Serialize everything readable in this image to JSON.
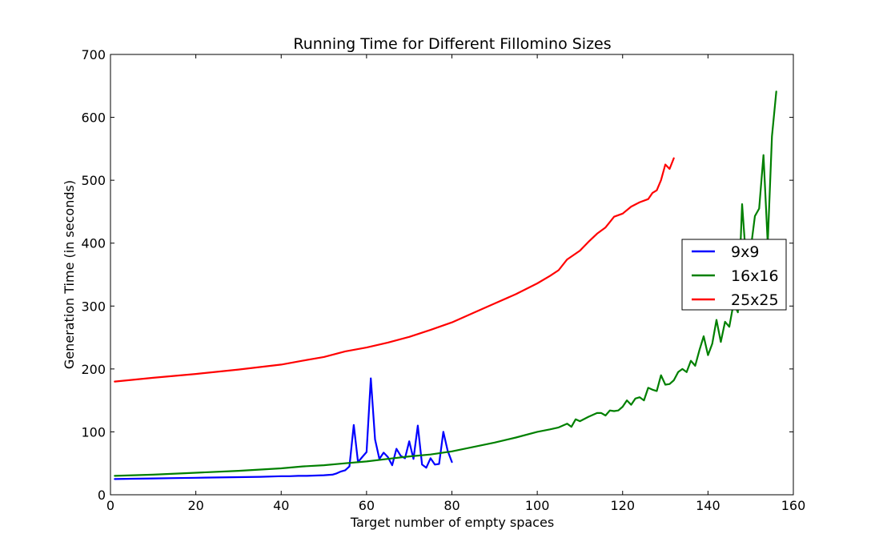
{
  "chart_data": {
    "type": "line",
    "title": "Running Time for Different Fillomino Sizes",
    "xlabel": "Target number of empty spaces",
    "ylabel": "Generation Time (in seconds)",
    "xlim": [
      0,
      160
    ],
    "ylim": [
      0,
      700
    ],
    "xticks": [
      0,
      20,
      40,
      60,
      80,
      100,
      120,
      140,
      160
    ],
    "yticks": [
      0,
      100,
      200,
      300,
      400,
      500,
      600,
      700
    ],
    "grid": false,
    "legend_position": "right",
    "series": [
      {
        "name": "9x9",
        "color": "#0000ff",
        "x": [
          1,
          5,
          10,
          15,
          20,
          25,
          30,
          35,
          40,
          42,
          44,
          46,
          48,
          50,
          52,
          53,
          54,
          55,
          56,
          57,
          58,
          59,
          60,
          61,
          62,
          63,
          64,
          65,
          66,
          67,
          68,
          69,
          70,
          71,
          72,
          73,
          74,
          75,
          76,
          77,
          78,
          79,
          80
        ],
        "y": [
          25,
          25.5,
          26,
          26.5,
          27,
          27.5,
          28,
          28.5,
          29.5,
          29.5,
          30,
          30,
          30.5,
          31,
          32,
          34,
          37,
          39,
          45,
          111,
          52,
          60,
          68,
          185,
          88,
          57,
          67,
          60,
          47,
          73,
          62,
          58,
          85,
          57,
          110,
          48,
          43,
          58,
          48,
          49,
          100,
          70,
          52
        ]
      },
      {
        "name": "16x16",
        "color": "#008000",
        "x": [
          1,
          10,
          20,
          30,
          40,
          45,
          50,
          55,
          60,
          65,
          70,
          75,
          80,
          85,
          90,
          95,
          100,
          103,
          105,
          107,
          108,
          109,
          110,
          112,
          114,
          115,
          116,
          117,
          118,
          119,
          120,
          121,
          122,
          123,
          124,
          125,
          126,
          127,
          128,
          129,
          130,
          131,
          132,
          133,
          134,
          135,
          136,
          137,
          138,
          139,
          140,
          141,
          142,
          143,
          144,
          145,
          146,
          147,
          148,
          149,
          150,
          151,
          152,
          153,
          154,
          155,
          156
        ],
        "y": [
          30,
          32,
          35,
          38,
          42,
          45,
          47,
          50,
          53,
          57,
          61,
          64,
          69,
          76,
          83,
          91,
          100,
          104,
          107,
          113,
          108,
          120,
          117,
          124,
          130,
          130,
          126,
          134,
          133,
          134,
          140,
          150,
          143,
          153,
          155,
          150,
          170,
          167,
          165,
          190,
          175,
          176,
          182,
          195,
          200,
          195,
          213,
          205,
          230,
          252,
          222,
          240,
          278,
          243,
          275,
          267,
          305,
          290,
          462,
          365,
          390,
          443,
          455,
          540,
          400,
          570,
          641
        ]
      },
      {
        "name": "25x25",
        "color": "#ff0000",
        "x": [
          1,
          10,
          20,
          30,
          40,
          45,
          50,
          55,
          60,
          65,
          70,
          75,
          80,
          85,
          90,
          95,
          100,
          103,
          105,
          107,
          110,
          112,
          114,
          116,
          118,
          120,
          122,
          124,
          126,
          127,
          128,
          129,
          130,
          131,
          132
        ],
        "y": [
          180,
          186,
          192,
          199,
          207,
          213,
          219,
          228,
          234,
          242,
          251,
          262,
          274,
          289,
          304,
          319,
          336,
          348,
          357,
          374,
          388,
          402,
          415,
          425,
          442,
          447,
          458,
          465,
          470,
          480,
          484,
          500,
          525,
          518,
          535
        ]
      }
    ]
  }
}
